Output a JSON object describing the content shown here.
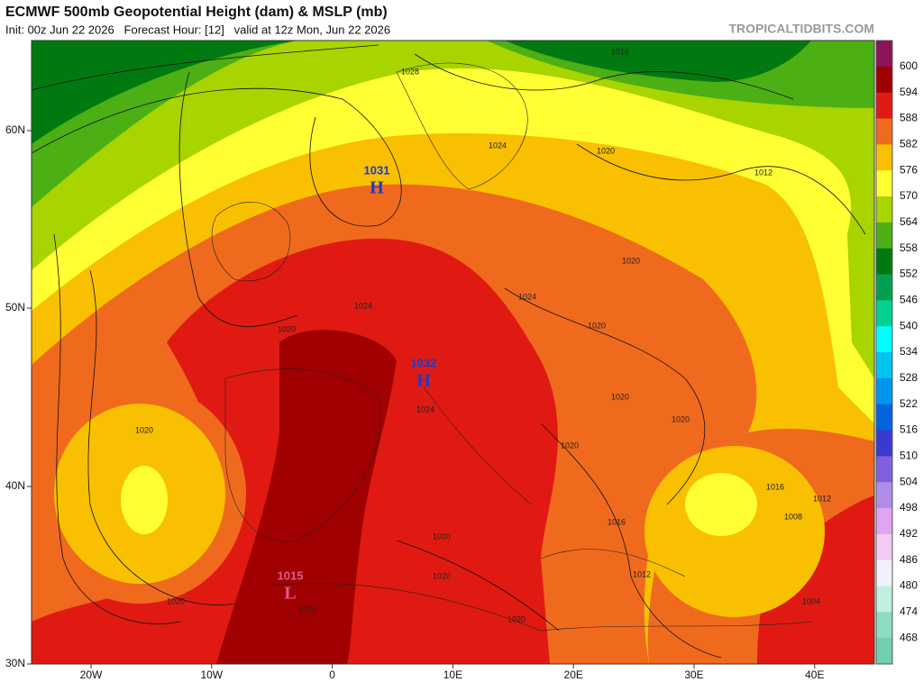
{
  "header": {
    "title": "ECMWF 500mb Geopotential Height (dam) & MSLP (mb)",
    "subtitle": "Init: 00z Jun 22 2026   Forecast Hour: [12]   valid at 12z Mon, Jun 22 2026",
    "watermark": "TROPICALTIDBITS.COM"
  },
  "axes": {
    "lat": [
      "60N",
      "50N",
      "40N",
      "30N"
    ],
    "lon": [
      "20W",
      "10W",
      "0",
      "10E",
      "20E",
      "30E",
      "40E"
    ]
  },
  "colorbar": {
    "labels": [
      600,
      594,
      588,
      582,
      576,
      570,
      564,
      558,
      552,
      546,
      540,
      534,
      528,
      522,
      516,
      510,
      504,
      498,
      492,
      486,
      480,
      474,
      468
    ],
    "colors": [
      "#8c1458",
      "#a00000",
      "#e01a12",
      "#f06a1e",
      "#f8c000",
      "#ffff33",
      "#a8d400",
      "#4caf14",
      "#007a10",
      "#00a050",
      "#00d090",
      "#00ffff",
      "#00c4f0",
      "#0096ec",
      "#0064dc",
      "#3a3ad0",
      "#8060e0",
      "#b08ee8",
      "#e0a4f0",
      "#f2caf2",
      "#f2f0fc",
      "#c0f0e0",
      "#8edcc0",
      "#70d0b0"
    ]
  },
  "centers": [
    {
      "value": "1031",
      "letter": "H"
    },
    {
      "value": "1032",
      "letter": "H"
    },
    {
      "value": "1015",
      "letter": "L"
    }
  ],
  "contour_labels": [
    "1028",
    "1016",
    "1024",
    "1020",
    "1012",
    "1020",
    "1024",
    "1024",
    "1020",
    "1020",
    "1020",
    "1020",
    "1024",
    "1020",
    "1020",
    "1016",
    "1012",
    "1008",
    "1016",
    "1020",
    "1020",
    "1012",
    "1004",
    "1020",
    "1020",
    "1020"
  ]
}
